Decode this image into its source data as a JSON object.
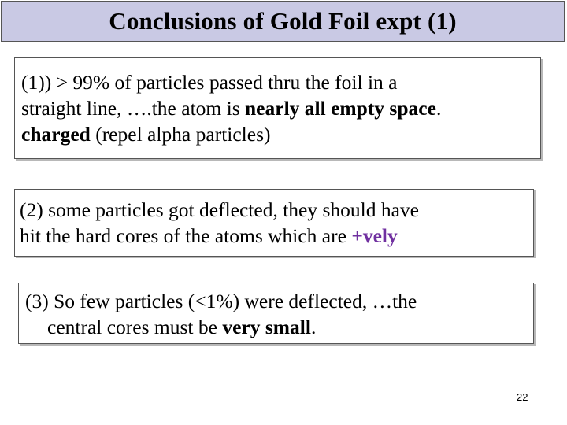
{
  "slide": {
    "title": "Conclusions of Gold Foil expt (1)",
    "page_number": "22"
  },
  "box1": {
    "line1": "(1)) > 99% of particles passed thru the foil in a",
    "line2_prefix": "straight line, ….the atom is ",
    "line2_bold": "nearly all empty space",
    "line2_suffix": ".",
    "line3_bold": "charged",
    "line3_rest": " (repel alpha particles)"
  },
  "box2": {
    "line1": "(2) some particles got deflected, they should have",
    "line2_prefix": "hit the hard cores of the atoms which are ",
    "line2_highlight": "+vely",
    "highlight_color": "#7030a0"
  },
  "box3": {
    "line1": "(3) So few particles (<1%) were deflected, …the",
    "line2_prefix": "central cores must be ",
    "line2_bold": "very small",
    "line2_suffix": "."
  },
  "colors": {
    "title_background": "#c9c9e4",
    "border": "#555555"
  }
}
